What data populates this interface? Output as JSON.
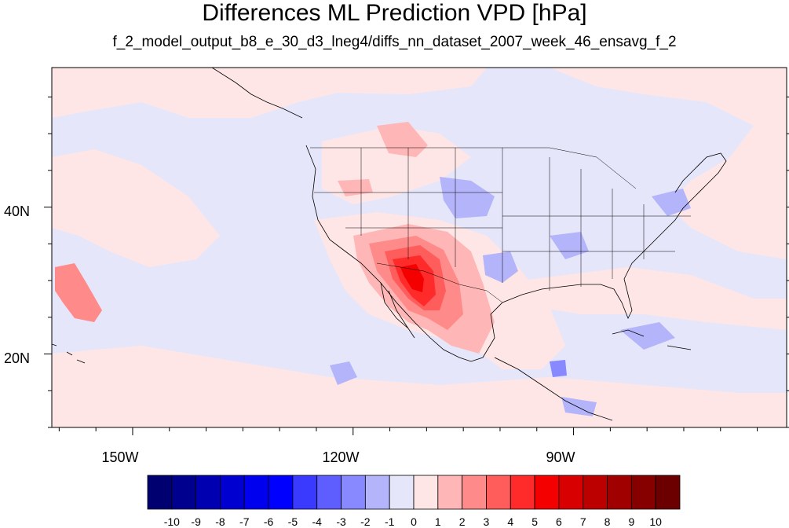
{
  "title": "Differences ML Prediction VPD [hPa]",
  "subtitle": "f_2_model_output_b8_e_30_d3_lneg4/diffs_nn_dataset_2007_week_46_ensavg_f_2",
  "map": {
    "lon_range": [
      -161,
      -61
    ],
    "lat_range": [
      10,
      59
    ],
    "lon_ticks": [
      {
        "value": -150,
        "label": "150W"
      },
      {
        "value": -120,
        "label": "120W"
      },
      {
        "value": -90,
        "label": "90W"
      }
    ],
    "lat_ticks": [
      {
        "value": 40,
        "label": "40N"
      },
      {
        "value": 20,
        "label": "20N"
      }
    ],
    "background_color": "#e6e6fa",
    "colors": {
      "pos_1": "#ffe6e6",
      "pos_2": "#ffb6b6",
      "pos_3": "#ff8a8a",
      "pos_4": "#ff5c5c",
      "pos_5": "#ff2a2a",
      "pos_6": "#f40000",
      "neg_1": "#e6e6fa",
      "neg_2": "#b4b4fa",
      "neg_3": "#8888ff"
    }
  },
  "colorbar": {
    "labels": [
      "-10",
      "-9",
      "-8",
      "-7",
      "-6",
      "-5",
      "-4",
      "-3",
      "-2",
      "-1",
      "0",
      "1",
      "2",
      "3",
      "4",
      "5",
      "6",
      "7",
      "8",
      "9",
      "10"
    ],
    "colors": [
      "#000070",
      "#00008f",
      "#0000b0",
      "#0000d0",
      "#0000ee",
      "#0000ff",
      "#3a3aff",
      "#5e5eff",
      "#8888ff",
      "#b4b4fa",
      "#e6e6fa",
      "#ffe6e6",
      "#ffb6b6",
      "#ff8a8a",
      "#ff5c5c",
      "#ff2a2a",
      "#f40000",
      "#d80000",
      "#bc0000",
      "#a00000",
      "#860000",
      "#6c0000"
    ]
  }
}
